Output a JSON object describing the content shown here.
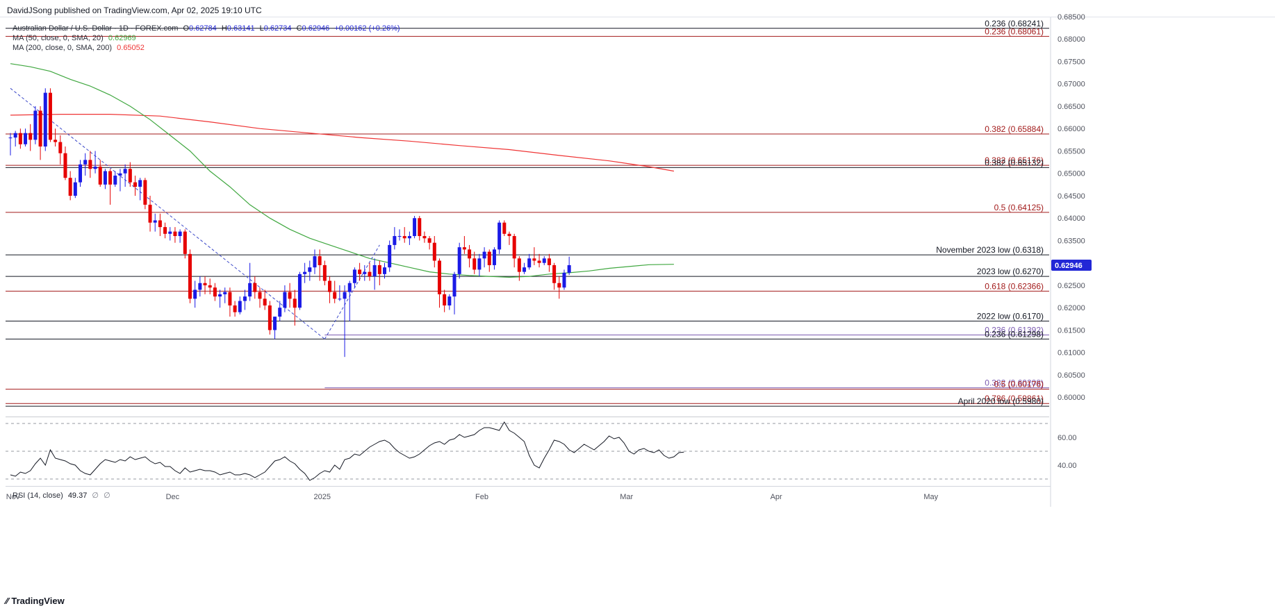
{
  "header": {
    "publish_text": "DavidJSong published on TradingView.com, Apr 02, 2025 19:10 UTC"
  },
  "legend": {
    "symbol": "Australian Dollar / U.S. Dollar · 1D · FOREX.com",
    "o_label": "O",
    "o_value": "0.62784",
    "h_label": "H",
    "h_value": "0.63141",
    "l_label": "L",
    "l_value": "0.62734",
    "c_label": "C",
    "c_value": "0.62946",
    "change": "+0.00162 (+0.26%)",
    "ma50_label": "MA (50, close, 0, SMA, 20)",
    "ma50_value": "0.62969",
    "ma200_label": "MA (200, close, 0, SMA, 200)",
    "ma200_value": "0.65052"
  },
  "rsi_legend": {
    "label": "RSI (14, close)",
    "value": "49.37",
    "extra1": "∅",
    "extra2": "∅"
  },
  "price_badge": "0.62946",
  "footer": {
    "brand": "TradingView"
  },
  "colors": {
    "up": "#1a1ae6",
    "down": "#e60000",
    "ma50": "#3fa73f",
    "ma200": "#ef3434",
    "level_red": "#a21a1a",
    "level_black": "#131722",
    "level_purple": "#7b5bb1",
    "badge_bg": "#2227d6",
    "axis_text": "#50535e"
  },
  "chart_data": [
    {
      "type": "candlestick",
      "title": "Australian Dollar / U.S. Dollar · 1D · FOREX.com",
      "ylim": [
        0.596,
        0.685
      ],
      "xlim": [
        0,
        153
      ],
      "x_ticks": [
        {
          "i": 0.5,
          "label": "Nov"
        },
        {
          "i": 32.5,
          "label": "Dec"
        },
        {
          "i": 62.5,
          "label": "2025"
        },
        {
          "i": 94.5,
          "label": "Feb"
        },
        {
          "i": 123.5,
          "label": "Mar"
        },
        {
          "i": 153.5,
          "label": "Apr"
        },
        {
          "i": 184.5,
          "label": "May"
        }
      ],
      "y_ticks": [
        "0.68500",
        "0.68000",
        "0.67500",
        "0.67000",
        "0.66500",
        "0.66000",
        "0.65500",
        "0.65000",
        "0.64500",
        "0.64000",
        "0.63500",
        "0.63000",
        "0.62500",
        "0.62000",
        "0.61500",
        "0.61000",
        "0.60500",
        "0.60000"
      ],
      "candles": [
        [
          0.658,
          0.659,
          0.654,
          0.658
        ],
        [
          0.658,
          0.6595,
          0.656,
          0.659
        ],
        [
          0.659,
          0.66,
          0.6555,
          0.6565
        ],
        [
          0.6565,
          0.66,
          0.656,
          0.659
        ],
        [
          0.659,
          0.661,
          0.655,
          0.6575
        ],
        [
          0.6575,
          0.665,
          0.6565,
          0.664
        ],
        [
          0.664,
          0.665,
          0.653,
          0.656
        ],
        [
          0.656,
          0.669,
          0.655,
          0.668
        ],
        [
          0.668,
          0.669,
          0.657,
          0.6575
        ],
        [
          0.6575,
          0.66,
          0.656,
          0.657
        ],
        [
          0.657,
          0.6585,
          0.652,
          0.6545
        ],
        [
          0.6545,
          0.656,
          0.6485,
          0.649
        ],
        [
          0.649,
          0.6505,
          0.644,
          0.645
        ],
        [
          0.645,
          0.649,
          0.6445,
          0.648
        ],
        [
          0.648,
          0.653,
          0.647,
          0.652
        ],
        [
          0.652,
          0.6545,
          0.6495,
          0.653
        ],
        [
          0.653,
          0.655,
          0.649,
          0.651
        ],
        [
          0.651,
          0.655,
          0.65,
          0.6515
        ],
        [
          0.6515,
          0.653,
          0.647,
          0.6475
        ],
        [
          0.6475,
          0.651,
          0.6465,
          0.6505
        ],
        [
          0.6505,
          0.651,
          0.643,
          0.6475
        ],
        [
          0.6475,
          0.6505,
          0.647,
          0.6495
        ],
        [
          0.6495,
          0.651,
          0.646,
          0.65
        ],
        [
          0.65,
          0.652,
          0.647,
          0.651
        ],
        [
          0.651,
          0.6525,
          0.647,
          0.648
        ],
        [
          0.648,
          0.6495,
          0.645,
          0.647
        ],
        [
          0.647,
          0.649,
          0.644,
          0.6485
        ],
        [
          0.6485,
          0.649,
          0.642,
          0.643
        ],
        [
          0.643,
          0.645,
          0.637,
          0.639
        ],
        [
          0.639,
          0.641,
          0.637,
          0.6395
        ],
        [
          0.6395,
          0.641,
          0.636,
          0.638
        ],
        [
          0.638,
          0.639,
          0.6355,
          0.6365
        ],
        [
          0.6365,
          0.638,
          0.635,
          0.637
        ],
        [
          0.637,
          0.638,
          0.6345,
          0.636
        ],
        [
          0.636,
          0.6375,
          0.6345,
          0.637
        ],
        [
          0.637,
          0.6375,
          0.631,
          0.632
        ],
        [
          0.632,
          0.633,
          0.621,
          0.622
        ],
        [
          0.622,
          0.626,
          0.62,
          0.624
        ],
        [
          0.624,
          0.627,
          0.6225,
          0.6255
        ],
        [
          0.6255,
          0.627,
          0.623,
          0.625
        ],
        [
          0.625,
          0.6265,
          0.623,
          0.6245
        ],
        [
          0.6245,
          0.6255,
          0.6215,
          0.6225
        ],
        [
          0.6225,
          0.624,
          0.62,
          0.623
        ],
        [
          0.623,
          0.6245,
          0.621,
          0.6235
        ],
        [
          0.6235,
          0.6245,
          0.618,
          0.6205
        ],
        [
          0.6205,
          0.6215,
          0.618,
          0.619
        ],
        [
          0.619,
          0.6225,
          0.6185,
          0.6215
        ],
        [
          0.6215,
          0.624,
          0.6195,
          0.6225
        ],
        [
          0.6225,
          0.63,
          0.6215,
          0.6255
        ],
        [
          0.6255,
          0.627,
          0.622,
          0.6235
        ],
        [
          0.6235,
          0.6245,
          0.62,
          0.622
        ],
        [
          0.622,
          0.624,
          0.6195,
          0.6205
        ],
        [
          0.6205,
          0.6215,
          0.614,
          0.615
        ],
        [
          0.615,
          0.618,
          0.613,
          0.618
        ],
        [
          0.618,
          0.6215,
          0.617,
          0.62
        ],
        [
          0.62,
          0.625,
          0.619,
          0.6235
        ],
        [
          0.6235,
          0.6255,
          0.62,
          0.622
        ],
        [
          0.622,
          0.624,
          0.616,
          0.62
        ],
        [
          0.62,
          0.628,
          0.6195,
          0.6275
        ],
        [
          0.6275,
          0.63,
          0.6255,
          0.628
        ],
        [
          0.628,
          0.6305,
          0.626,
          0.629
        ],
        [
          0.629,
          0.633,
          0.6275,
          0.6315
        ],
        [
          0.6315,
          0.633,
          0.626,
          0.6295
        ],
        [
          0.6295,
          0.6305,
          0.625,
          0.626
        ],
        [
          0.626,
          0.627,
          0.621,
          0.6235
        ],
        [
          0.6235,
          0.626,
          0.621,
          0.622
        ],
        [
          0.622,
          0.625,
          0.6215,
          0.622
        ],
        [
          0.622,
          0.625,
          0.609,
          0.6235
        ],
        [
          0.6235,
          0.626,
          0.617,
          0.6255
        ],
        [
          0.6255,
          0.629,
          0.6245,
          0.6285
        ],
        [
          0.6285,
          0.63,
          0.626,
          0.6275
        ],
        [
          0.6275,
          0.6295,
          0.626,
          0.628
        ],
        [
          0.628,
          0.63,
          0.626,
          0.627
        ],
        [
          0.627,
          0.631,
          0.624,
          0.6295
        ],
        [
          0.6295,
          0.6305,
          0.625,
          0.6275
        ],
        [
          0.6275,
          0.63,
          0.6265,
          0.629
        ],
        [
          0.629,
          0.635,
          0.628,
          0.634
        ],
        [
          0.634,
          0.638,
          0.633,
          0.636
        ],
        [
          0.636,
          0.6375,
          0.635,
          0.636
        ],
        [
          0.636,
          0.638,
          0.6345,
          0.6355
        ],
        [
          0.6355,
          0.637,
          0.634,
          0.636
        ],
        [
          0.636,
          0.6405,
          0.6355,
          0.64
        ],
        [
          0.64,
          0.6405,
          0.635,
          0.636
        ],
        [
          0.636,
          0.637,
          0.6345,
          0.6355
        ],
        [
          0.6355,
          0.636,
          0.633,
          0.6345
        ],
        [
          0.6345,
          0.636,
          0.629,
          0.6305
        ],
        [
          0.6305,
          0.631,
          0.62,
          0.623
        ],
        [
          0.623,
          0.624,
          0.619,
          0.6205
        ],
        [
          0.6205,
          0.623,
          0.6195,
          0.6225
        ],
        [
          0.6225,
          0.628,
          0.6185,
          0.6275
        ],
        [
          0.6275,
          0.6345,
          0.6265,
          0.6335
        ],
        [
          0.6335,
          0.636,
          0.632,
          0.633
        ],
        [
          0.633,
          0.634,
          0.629,
          0.631
        ],
        [
          0.631,
          0.6325,
          0.6275,
          0.6285
        ],
        [
          0.6285,
          0.632,
          0.627,
          0.631
        ],
        [
          0.631,
          0.6335,
          0.629,
          0.6325
        ],
        [
          0.6325,
          0.633,
          0.628,
          0.6295
        ],
        [
          0.6295,
          0.6335,
          0.6285,
          0.633
        ],
        [
          0.633,
          0.6395,
          0.632,
          0.639
        ],
        [
          0.639,
          0.6395,
          0.636,
          0.6365
        ],
        [
          0.6365,
          0.637,
          0.634,
          0.636
        ],
        [
          0.636,
          0.6365,
          0.629,
          0.631
        ],
        [
          0.631,
          0.6315,
          0.626,
          0.628
        ],
        [
          0.628,
          0.63,
          0.6275,
          0.629
        ],
        [
          0.629,
          0.632,
          0.6285,
          0.631
        ],
        [
          0.631,
          0.6335,
          0.6295,
          0.6305
        ],
        [
          0.6305,
          0.632,
          0.629,
          0.63
        ],
        [
          0.63,
          0.6315,
          0.6295,
          0.631
        ],
        [
          0.631,
          0.632,
          0.628,
          0.6295
        ],
        [
          0.6295,
          0.63,
          0.624,
          0.6255
        ],
        [
          0.6255,
          0.627,
          0.622,
          0.6245
        ],
        [
          0.6245,
          0.6285,
          0.624,
          0.6278
        ],
        [
          0.6278,
          0.6314,
          0.6273,
          0.6295
        ]
      ],
      "ma50": [
        [
          0,
          0.6745
        ],
        [
          4,
          0.6738
        ],
        [
          8,
          0.6728
        ],
        [
          12,
          0.671
        ],
        [
          16,
          0.6695
        ],
        [
          20,
          0.6675
        ],
        [
          24,
          0.665
        ],
        [
          28,
          0.662
        ],
        [
          32,
          0.6585
        ],
        [
          36,
          0.655
        ],
        [
          40,
          0.6505
        ],
        [
          44,
          0.647
        ],
        [
          48,
          0.643
        ],
        [
          52,
          0.64
        ],
        [
          56,
          0.6375
        ],
        [
          60,
          0.6355
        ],
        [
          64,
          0.634
        ],
        [
          68,
          0.6325
        ],
        [
          72,
          0.631
        ],
        [
          76,
          0.63
        ],
        [
          80,
          0.629
        ],
        [
          84,
          0.628
        ],
        [
          88,
          0.6275
        ],
        [
          92,
          0.6272
        ],
        [
          96,
          0.627
        ],
        [
          100,
          0.6268
        ],
        [
          104,
          0.627
        ],
        [
          108,
          0.6275
        ],
        [
          112,
          0.6278
        ],
        [
          116,
          0.6282
        ],
        [
          120,
          0.6288
        ],
        [
          124,
          0.6292
        ],
        [
          128,
          0.6296
        ],
        [
          133,
          0.6297
        ]
      ],
      "ma200": [
        [
          0,
          0.663
        ],
        [
          10,
          0.6632
        ],
        [
          20,
          0.6632
        ],
        [
          30,
          0.6628
        ],
        [
          40,
          0.6615
        ],
        [
          50,
          0.66
        ],
        [
          60,
          0.659
        ],
        [
          70,
          0.658
        ],
        [
          80,
          0.6572
        ],
        [
          90,
          0.6562
        ],
        [
          100,
          0.6553
        ],
        [
          110,
          0.654
        ],
        [
          120,
          0.6528
        ],
        [
          128,
          0.6515
        ],
        [
          133,
          0.6505
        ]
      ],
      "trendlines": [
        {
          "from": [
            0,
            0.669
          ],
          "to": [
            63,
            0.613
          ],
          "style": "dashed",
          "color": "#3d4ac9"
        },
        {
          "from": [
            63,
            0.613
          ],
          "to": [
            74,
            0.634
          ],
          "style": "dashed",
          "color": "#3d4ac9"
        }
      ],
      "levels": [
        {
          "value": 0.6824,
          "style": "black",
          "start": 0,
          "label": "0.236 (0.68241)"
        },
        {
          "value": 0.6806,
          "style": "red",
          "start": 0,
          "label": "0.236 (0.68061)"
        },
        {
          "value": 0.6588,
          "style": "red",
          "start": 0,
          "label": "0.382 (0.65884)"
        },
        {
          "value": 0.6518,
          "style": "red",
          "start": 0,
          "label": "0.382 (0.65176)"
        },
        {
          "value": 0.6513,
          "style": "black",
          "start": 0,
          "label": "0.382 (0.65132)"
        },
        {
          "value": 0.6413,
          "style": "red",
          "start": 0,
          "label": "0.5 (0.64125)"
        },
        {
          "value": 0.6318,
          "style": "black",
          "start": 0,
          "label": "November 2023 low (0.6318)"
        },
        {
          "value": 0.627,
          "style": "black",
          "start": 0,
          "label": "2023 low (0.6270)"
        },
        {
          "value": 0.6237,
          "style": "red",
          "start": 0,
          "label": "0.618 (0.62366)"
        },
        {
          "value": 0.617,
          "style": "black",
          "start": 0,
          "label": "2022 low (0.6170)"
        },
        {
          "value": 0.6139,
          "style": "purple",
          "start": 63,
          "label": "0.236 (0.61392)"
        },
        {
          "value": 0.613,
          "style": "black",
          "start": 0,
          "label": "0.236 (0.61298)"
        },
        {
          "value": 0.6021,
          "style": "purple",
          "start": 63,
          "label": "0.382 (0.60208)"
        },
        {
          "value": 0.6018,
          "style": "red",
          "start": 0,
          "label": "0.5 (0.60176)"
        },
        {
          "value": 0.5986,
          "style": "red",
          "start": 0,
          "label": "0.786 (0.59861)"
        },
        {
          "value": 0.598,
          "style": "black",
          "start": 0,
          "label": "April 2020 low (0.5980)"
        }
      ]
    },
    {
      "type": "line",
      "title": "RSI (14, close)",
      "ylim": [
        25,
        75
      ],
      "y_ticks": [
        "60.00",
        "40.00"
      ],
      "bands": [
        30,
        50,
        70
      ],
      "values": [
        33,
        32,
        35,
        34,
        36,
        41,
        45,
        40,
        51,
        45,
        44,
        43,
        41,
        40,
        36,
        34,
        33,
        37,
        41,
        44,
        43,
        42,
        44,
        43,
        46,
        44,
        45,
        46,
        43,
        41,
        42,
        39,
        39,
        36,
        34,
        38,
        35,
        36,
        37,
        36,
        36,
        35,
        33,
        34,
        35,
        33,
        33,
        34,
        33,
        31,
        33,
        35,
        39,
        43,
        44,
        46,
        43,
        41,
        37,
        34,
        29,
        31,
        34,
        36,
        35,
        40,
        37,
        44,
        45,
        48,
        47,
        50,
        53,
        55,
        57,
        58,
        56,
        52,
        49,
        47,
        45,
        46,
        48,
        51,
        54,
        56,
        57,
        55,
        58,
        59,
        62,
        60,
        61,
        62,
        65,
        67,
        67,
        66,
        65,
        71,
        65,
        63,
        60,
        57,
        47,
        40,
        38,
        45,
        51,
        58,
        57,
        55,
        51,
        49,
        52,
        55,
        53,
        51,
        54,
        57,
        61,
        59,
        60,
        56,
        50,
        48,
        51,
        52,
        50,
        49,
        51,
        47,
        45,
        46,
        49,
        49.37
      ]
    }
  ]
}
